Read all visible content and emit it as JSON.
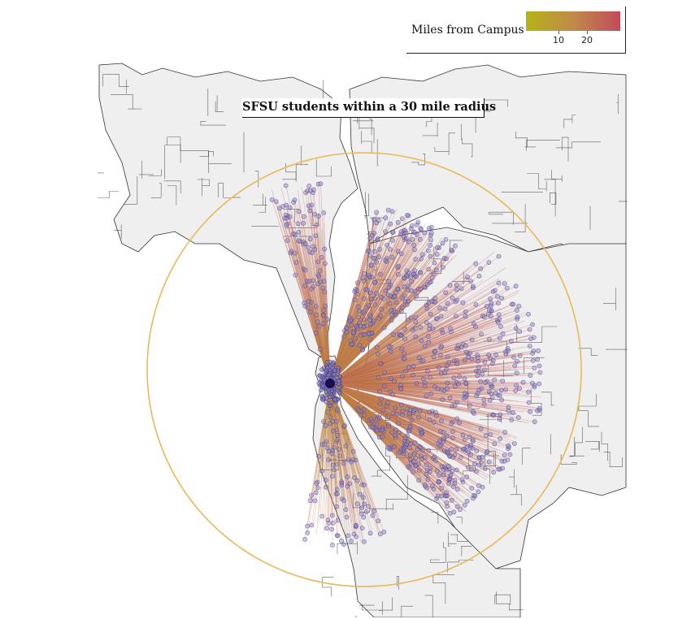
{
  "map": {
    "title": "SFSU students within a 30 mile radius",
    "radius_miles": 30,
    "campus_label": "",
    "colors": {
      "background": "#ffffff",
      "land": "#efefef",
      "boundary": "#333333",
      "radius_circle": "#e8b95a",
      "campus_dot": "#1a0f4f",
      "student_point_fill": "#8d86c4",
      "student_point_stroke": "#4a3f8a"
    }
  },
  "legend": {
    "title": "Miles from Campus",
    "color_low": "#b5b318",
    "color_mid": "#c08a4a",
    "color_high": "#c24a5c",
    "ticks": [
      {
        "value": 10,
        "label": "10"
      },
      {
        "value": 20,
        "label": "20"
      }
    ]
  }
}
